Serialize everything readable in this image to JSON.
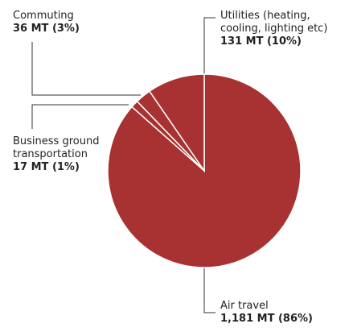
{
  "chart_data": {
    "type": "pie",
    "categories": [
      "Air travel",
      "Business ground transportation",
      "Commuting",
      "Utilities (heating, cooling, lighting etc)"
    ],
    "values": [
      1181,
      17,
      36,
      131
    ],
    "value_labels": [
      "1,181 MT (86%)",
      "17 MT (1%)",
      "36 MT (3%)",
      "131 MT (10%)"
    ],
    "color": "#a83232"
  }
}
